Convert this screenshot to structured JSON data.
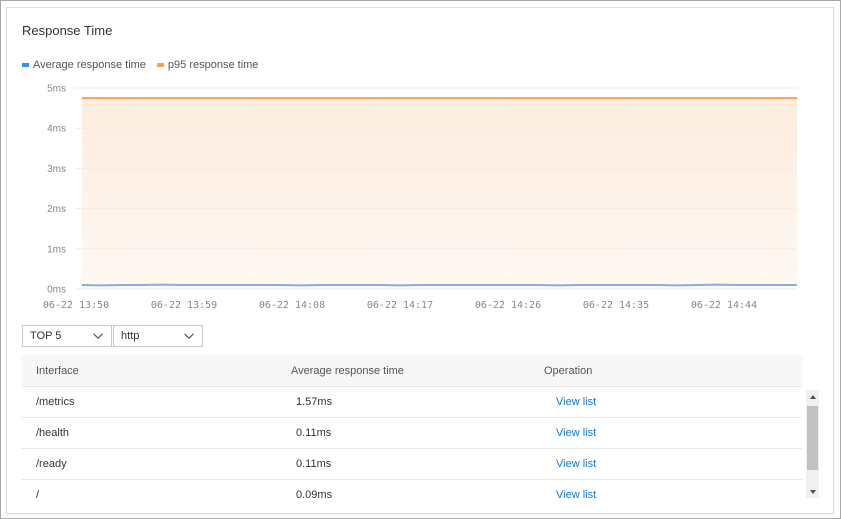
{
  "panel": {
    "title": "Response Time"
  },
  "legend": [
    {
      "label": "Average response time",
      "color": "#3d8ee8"
    },
    {
      "label": "p95 response time",
      "color": "#f5a35c"
    }
  ],
  "chart_data": {
    "type": "area",
    "title": "",
    "y_unit": "ms",
    "ylim": [
      0,
      5
    ],
    "y_ticks": [
      "0ms",
      "1ms",
      "2ms",
      "3ms",
      "4ms",
      "5ms"
    ],
    "x_tick_labels": [
      "06-22 13:50",
      "06-22 13:59",
      "06-22 14:08",
      "06-22 14:17",
      "06-22 14:26",
      "06-22 14:35",
      "06-22 14:44"
    ],
    "grid": true,
    "legend_position": "top-left",
    "series": [
      {
        "name": "Average response time",
        "color": "#3d8ee8",
        "values": [
          0.1,
          0.09,
          0.1,
          0.1,
          0.11,
          0.1,
          0.1,
          0.1,
          0.1,
          0.1,
          0.1,
          0.09,
          0.1,
          0.1,
          0.1,
          0.1,
          0.09,
          0.1,
          0.1,
          0.1,
          0.1,
          0.1,
          0.1,
          0.1,
          0.09,
          0.1,
          0.1,
          0.1,
          0.1,
          0.1,
          0.09,
          0.1,
          0.11,
          0.1,
          0.1,
          0.1,
          0.1
        ]
      },
      {
        "name": "p95 response time",
        "color": "#f5a35c",
        "fill": "#fdebdd",
        "values": [
          4.75,
          4.75,
          4.75,
          4.75,
          4.75,
          4.75,
          4.75,
          4.75,
          4.75,
          4.75,
          4.75,
          4.75,
          4.75,
          4.75,
          4.75,
          4.75,
          4.75,
          4.75,
          4.75,
          4.75,
          4.75,
          4.75,
          4.75,
          4.75,
          4.75,
          4.75,
          4.75,
          4.75,
          4.75,
          4.75,
          4.75,
          4.75,
          4.75,
          4.75,
          4.75,
          4.75,
          4.75
        ]
      }
    ]
  },
  "filters": {
    "top": {
      "value": "TOP 5"
    },
    "protocol": {
      "value": "http"
    }
  },
  "table": {
    "columns": [
      "Interface",
      "Average response time",
      "Operation"
    ],
    "rows": [
      {
        "interface": "/metrics",
        "avg": "1.57ms",
        "op": "View list"
      },
      {
        "interface": "/health",
        "avg": "0.11ms",
        "op": "View list"
      },
      {
        "interface": "/ready",
        "avg": "0.11ms",
        "op": "View list"
      },
      {
        "interface": "/",
        "avg": "0.09ms",
        "op": "View list"
      }
    ]
  }
}
